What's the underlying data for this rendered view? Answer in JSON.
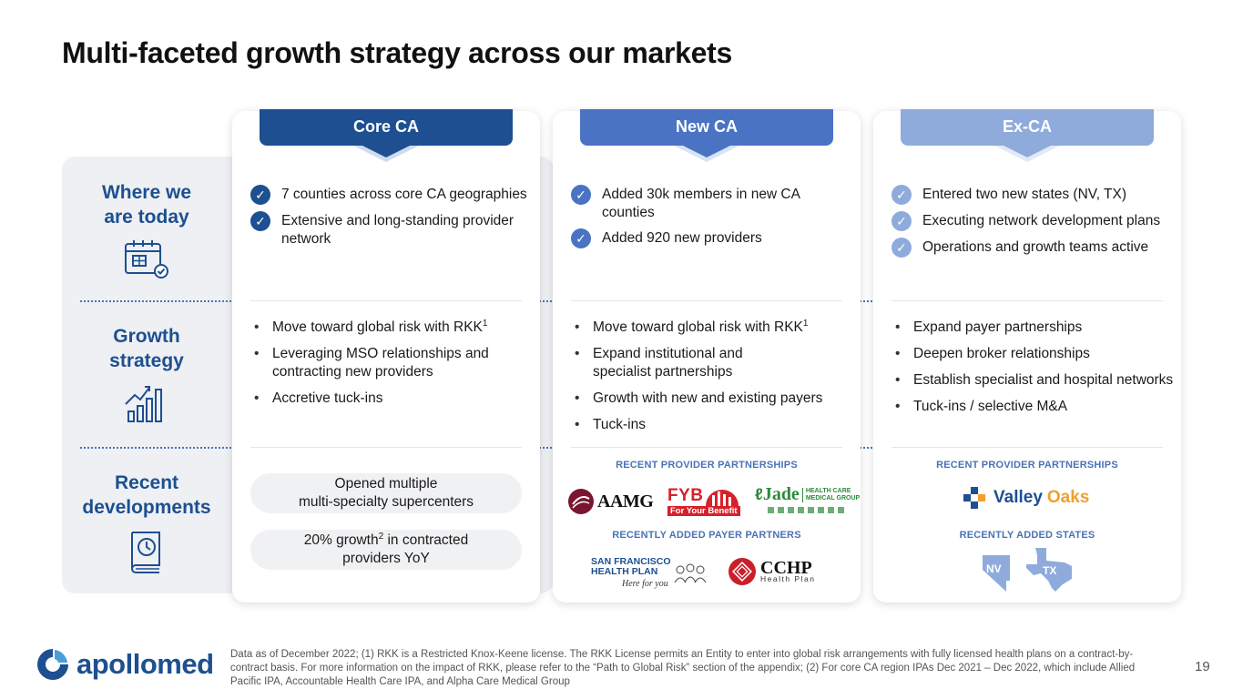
{
  "page": {
    "title": "Multi-faceted growth strategy across our markets",
    "page_number": "19",
    "footnote": "Data as of December 2022; (1) RKK is a Restricted Knox-Keene license. The RKK License permits an Entity to enter into global risk arrangements with fully licensed health plans on a contract-by-contract basis. For more information on the impact of RKK, please refer to the “Path to Global Risk” section of the appendix; (2) For core CA region IPAs Dec 2021 – Dec 2022, which include Allied Pacific IPA, Accountable Health Care IPA, and Alpha Care Medical Group",
    "brand_name": "apollomed"
  },
  "rows": {
    "today": {
      "line1": "Where we",
      "line2": "are today",
      "icon": "calendar-icon"
    },
    "growth": {
      "line1": "Growth",
      "line2": "strategy",
      "icon": "growth-chart-icon"
    },
    "recent": {
      "line1": "Recent",
      "line2": "developments",
      "icon": "book-clock-icon"
    }
  },
  "columns": {
    "core": {
      "title": "Core CA",
      "color": "#1d4f91",
      "checks": [
        "7 counties across core CA geographies",
        "Extensive and long-standing provider network"
      ],
      "bullets": {
        "b1_text": "Move toward global risk with RKK",
        "b1_sup": "1",
        "b2": "Leveraging MSO relationships and contracting new providers",
        "b3": "Accretive tuck-ins"
      },
      "pill1": {
        "line1": "Opened multiple",
        "line2": "multi-specialty supercenters"
      },
      "pill2": {
        "pre": "20% growth",
        "sup": "2",
        "post": " in contracted",
        "line2": "providers YoY"
      }
    },
    "new": {
      "title": "New CA",
      "color": "#4a73c4",
      "checks": [
        "Added 30k members in new CA counties",
        "Added 920 new providers"
      ],
      "bullets": {
        "b1_text": "Move toward global risk with RKK",
        "b1_sup": "1",
        "b2": "Expand institutional and specialist partnerships",
        "b3": "Growth with new and existing payers",
        "b4": "Tuck-ins"
      },
      "section1": "RECENT PROVIDER PARTNERSHIPS",
      "section2": "RECENTLY ADDED PAYER PARTNERS",
      "logos": {
        "aamg": "AAMG",
        "fyb": "FYB",
        "fyb_tag": "For Your Benefit",
        "jade": "Jade",
        "jade_tag1": "HEALTH CARE",
        "jade_tag2": "MEDICAL GROUP",
        "sfhp1": "SAN FRANCISCO",
        "sfhp2": "HEALTH PLAN",
        "sfhp_tag": "Here for you",
        "cchp": "CCHP",
        "cchp_tag": "Health Plan"
      }
    },
    "exca": {
      "title": "Ex-CA",
      "color": "#8fabdc",
      "checks": [
        "Entered two new states (NV, TX)",
        "Executing network development plans",
        "Operations and growth teams active"
      ],
      "bullets": {
        "b1": "Expand payer partnerships",
        "b2": "Deepen broker relationships",
        "b3": "Establish specialist and hospital networks",
        "b4": "Tuck-ins / selective M&A"
      },
      "section1": "RECENT PROVIDER PARTNERSHIPS",
      "section2": "RECENTLY ADDED STATES",
      "logos": {
        "valley": "Valley",
        "oaks": "Oaks"
      },
      "states": [
        "NV",
        "TX"
      ]
    }
  }
}
